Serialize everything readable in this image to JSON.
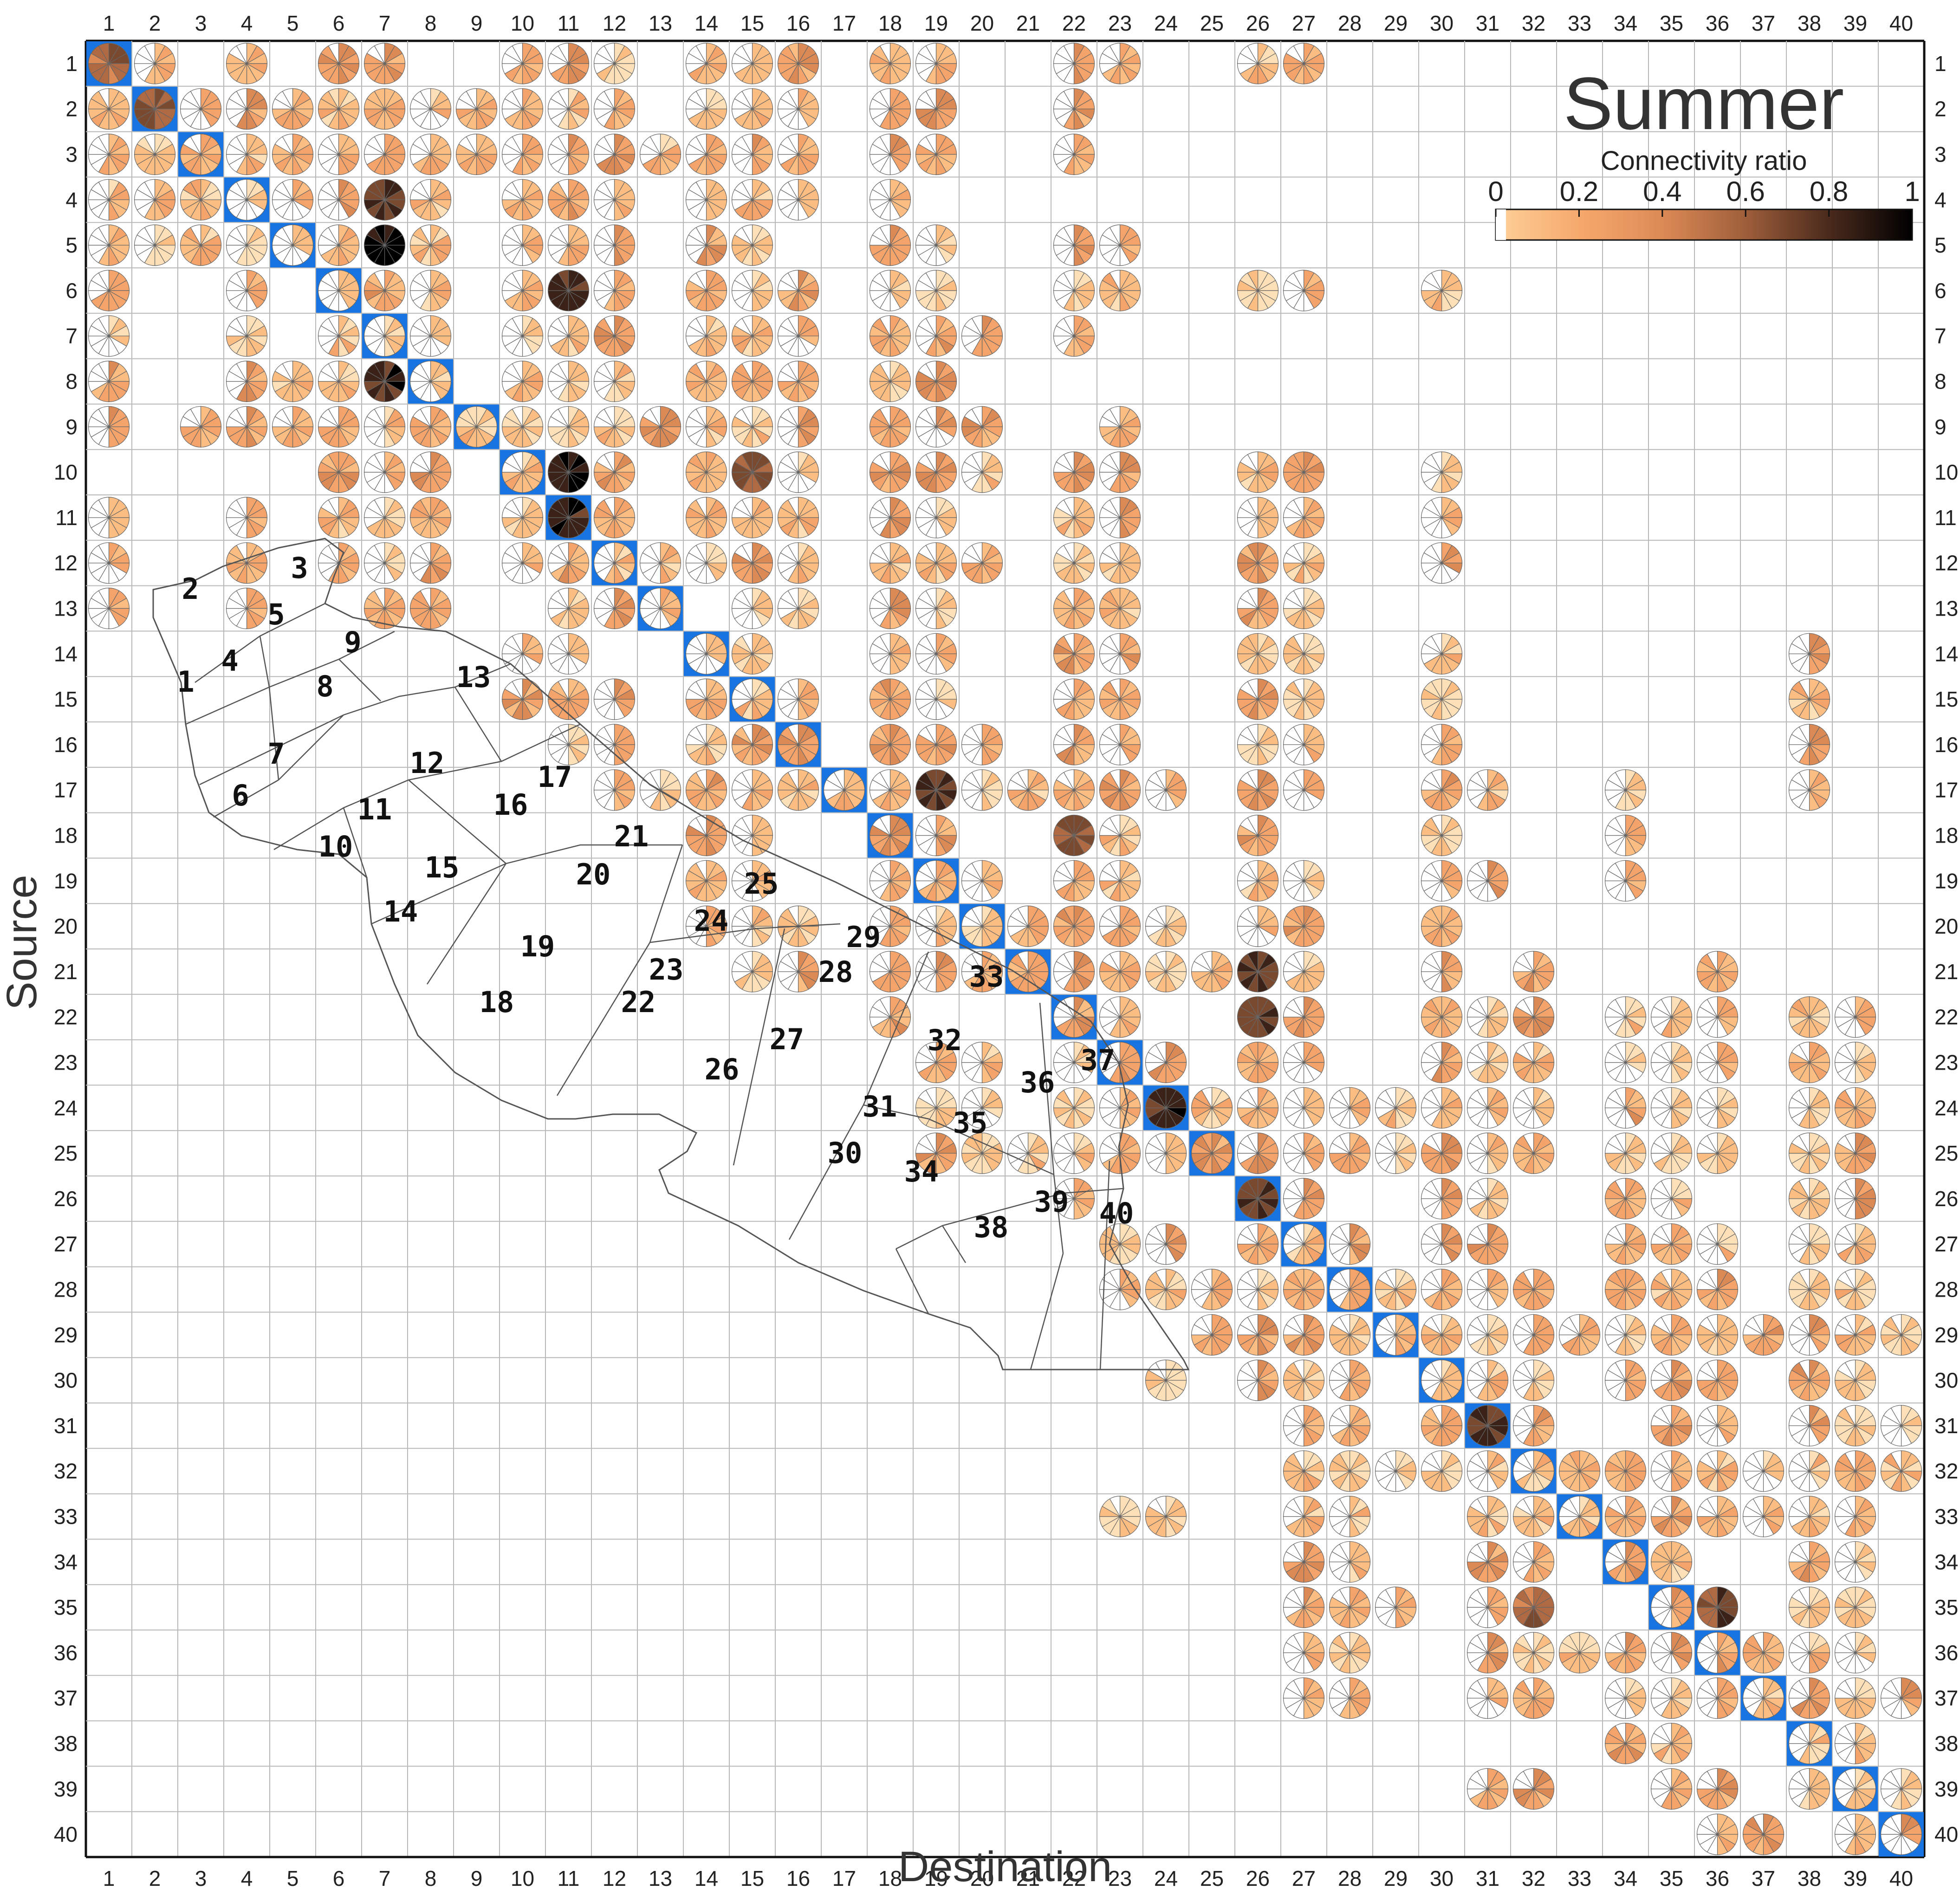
{
  "chart_data": {
    "type": "heatmap",
    "title": "Summer",
    "xlabel": "Destination",
    "ylabel": "Source",
    "legend_title": "Connectivity ratio",
    "colorbar": {
      "range": [
        0,
        1
      ],
      "ticks": [
        "0",
        "0.2",
        "0.4",
        "0.6",
        "0.8",
        "1"
      ],
      "colors": [
        "#ffffff",
        "#fdc98a",
        "#f4a46a",
        "#d38555",
        "#9a5a3a",
        "#5a3322",
        "#000000"
      ],
      "placement": "top-right"
    },
    "grid": true,
    "n_areas": 40,
    "x_categories": [
      "1",
      "2",
      "3",
      "4",
      "5",
      "6",
      "7",
      "8",
      "9",
      "10",
      "11",
      "12",
      "13",
      "14",
      "15",
      "16",
      "17",
      "18",
      "19",
      "20",
      "21",
      "22",
      "23",
      "24",
      "25",
      "26",
      "27",
      "28",
      "29",
      "30",
      "31",
      "32",
      "33",
      "34",
      "35",
      "36",
      "37",
      "38",
      "39",
      "40"
    ],
    "y_categories": [
      "1",
      "2",
      "3",
      "4",
      "5",
      "6",
      "7",
      "8",
      "9",
      "10",
      "11",
      "12",
      "13",
      "14",
      "15",
      "16",
      "17",
      "18",
      "19",
      "20",
      "21",
      "22",
      "23",
      "24",
      "25",
      "26",
      "27",
      "28",
      "29",
      "30",
      "31",
      "32",
      "33",
      "34",
      "35",
      "36",
      "37",
      "38",
      "39",
      "40"
    ],
    "self_recruitment_color": "#1874e0",
    "values_note": "",
    "connections": [
      {
        "source": 1,
        "dest": [
          1,
          2,
          4,
          6,
          7,
          10,
          11,
          12,
          14,
          15,
          16,
          18,
          19,
          22,
          23,
          26,
          27
        ]
      },
      {
        "source": 2,
        "dest": [
          1,
          2,
          3,
          4,
          5,
          6,
          7,
          8,
          9,
          10,
          11,
          12,
          14,
          15,
          16,
          18,
          19,
          22
        ]
      },
      {
        "source": 3,
        "dest": [
          1,
          2,
          3,
          4,
          5,
          6,
          7,
          8,
          9,
          10,
          11,
          12,
          13,
          14,
          15,
          16,
          18,
          19,
          22
        ]
      },
      {
        "source": 4,
        "dest": [
          1,
          2,
          3,
          4,
          5,
          6,
          7,
          8,
          10,
          11,
          12,
          14,
          15,
          16,
          18
        ]
      },
      {
        "source": 5,
        "dest": [
          1,
          2,
          3,
          4,
          5,
          6,
          7,
          8,
          10,
          11,
          12,
          14,
          15,
          18,
          19,
          22,
          23
        ]
      },
      {
        "source": 6,
        "dest": [
          1,
          4,
          6,
          7,
          8,
          10,
          11,
          12,
          14,
          15,
          16,
          18,
          19,
          22,
          23,
          26,
          27,
          30
        ]
      },
      {
        "source": 7,
        "dest": [
          1,
          4,
          6,
          7,
          8,
          10,
          11,
          12,
          14,
          15,
          16,
          18,
          19,
          20,
          22
        ]
      },
      {
        "source": 8,
        "dest": [
          1,
          4,
          5,
          6,
          7,
          8,
          10,
          11,
          12,
          14,
          15,
          16,
          18,
          19
        ]
      },
      {
        "source": 9,
        "dest": [
          1,
          3,
          4,
          5,
          6,
          7,
          8,
          9,
          10,
          11,
          12,
          13,
          14,
          15,
          16,
          18,
          19,
          20,
          23
        ]
      },
      {
        "source": 10,
        "dest": [
          6,
          7,
          8,
          10,
          11,
          12,
          14,
          15,
          16,
          18,
          19,
          20,
          22,
          23,
          26,
          27,
          30
        ]
      },
      {
        "source": 11,
        "dest": [
          1,
          4,
          6,
          7,
          8,
          10,
          11,
          12,
          14,
          15,
          16,
          18,
          19,
          22,
          23,
          26,
          27,
          30
        ]
      },
      {
        "source": 12,
        "dest": [
          1,
          4,
          6,
          7,
          8,
          10,
          11,
          12,
          13,
          14,
          15,
          16,
          18,
          19,
          20,
          22,
          23,
          26,
          27,
          30
        ]
      },
      {
        "source": 13,
        "dest": [
          1,
          4,
          7,
          8,
          11,
          12,
          13,
          15,
          16,
          18,
          19,
          22,
          23,
          26,
          27
        ]
      },
      {
        "source": 14,
        "dest": [
          10,
          11,
          14,
          15,
          18,
          19,
          22,
          23,
          26,
          27,
          30,
          38
        ]
      },
      {
        "source": 15,
        "dest": [
          10,
          11,
          12,
          14,
          15,
          16,
          18,
          19,
          22,
          23,
          26,
          27,
          30,
          38
        ]
      },
      {
        "source": 16,
        "dest": [
          11,
          12,
          14,
          15,
          16,
          18,
          19,
          20,
          22,
          23,
          26,
          27,
          30,
          38
        ]
      },
      {
        "source": 17,
        "dest": [
          12,
          13,
          14,
          15,
          16,
          17,
          18,
          19,
          20,
          21,
          22,
          23,
          24,
          26,
          27,
          30,
          31,
          34,
          38
        ]
      },
      {
        "source": 18,
        "dest": [
          14,
          15,
          18,
          19,
          22,
          23,
          26,
          30,
          34
        ]
      },
      {
        "source": 19,
        "dest": [
          14,
          15,
          18,
          19,
          20,
          22,
          23,
          26,
          27,
          30,
          31,
          34
        ]
      },
      {
        "source": 20,
        "dest": [
          14,
          15,
          16,
          18,
          19,
          20,
          21,
          22,
          23,
          24,
          26,
          27,
          30
        ]
      },
      {
        "source": 21,
        "dest": [
          15,
          16,
          18,
          19,
          20,
          21,
          22,
          23,
          24,
          25,
          26,
          27,
          30,
          32,
          36
        ]
      },
      {
        "source": 22,
        "dest": [
          18,
          22,
          23,
          26,
          27,
          30,
          31,
          32,
          34,
          35,
          36,
          38,
          39
        ]
      },
      {
        "source": 23,
        "dest": [
          19,
          20,
          22,
          23,
          24,
          26,
          27,
          30,
          31,
          32,
          34,
          35,
          36,
          38,
          39
        ]
      },
      {
        "source": 24,
        "dest": [
          19,
          20,
          22,
          23,
          24,
          25,
          26,
          27,
          28,
          29,
          30,
          31,
          32,
          34,
          35,
          36,
          38,
          39
        ]
      },
      {
        "source": 25,
        "dest": [
          19,
          20,
          21,
          22,
          23,
          24,
          25,
          26,
          27,
          28,
          29,
          30,
          31,
          32,
          34,
          35,
          36,
          38,
          39
        ]
      },
      {
        "source": 26,
        "dest": [
          22,
          26,
          27,
          30,
          31,
          34,
          35,
          38,
          39
        ]
      },
      {
        "source": 27,
        "dest": [
          23,
          24,
          26,
          27,
          28,
          30,
          31,
          34,
          35,
          36,
          38,
          39
        ]
      },
      {
        "source": 28,
        "dest": [
          23,
          24,
          25,
          26,
          27,
          28,
          29,
          30,
          31,
          32,
          34,
          35,
          36,
          38,
          39
        ]
      },
      {
        "source": 29,
        "dest": [
          25,
          26,
          27,
          28,
          29,
          30,
          31,
          32,
          33,
          34,
          35,
          36,
          37,
          38,
          39,
          40
        ]
      },
      {
        "source": 30,
        "dest": [
          24,
          26,
          27,
          28,
          30,
          31,
          32,
          34,
          35,
          36,
          38,
          39
        ]
      },
      {
        "source": 31,
        "dest": [
          27,
          28,
          30,
          31,
          32,
          35,
          36,
          38,
          39,
          40
        ]
      },
      {
        "source": 32,
        "dest": [
          27,
          28,
          29,
          30,
          31,
          32,
          33,
          34,
          35,
          36,
          37,
          38,
          39,
          40
        ]
      },
      {
        "source": 33,
        "dest": [
          23,
          24,
          27,
          28,
          31,
          32,
          33,
          34,
          35,
          36,
          37,
          38,
          39
        ]
      },
      {
        "source": 34,
        "dest": [
          27,
          28,
          31,
          32,
          34,
          35,
          38,
          39
        ]
      },
      {
        "source": 35,
        "dest": [
          27,
          28,
          29,
          31,
          32,
          35,
          36,
          38,
          39
        ]
      },
      {
        "source": 36,
        "dest": [
          27,
          28,
          31,
          32,
          33,
          34,
          35,
          36,
          37,
          38,
          39
        ]
      },
      {
        "source": 37,
        "dest": [
          27,
          28,
          31,
          32,
          34,
          35,
          36,
          37,
          38,
          39,
          40
        ]
      },
      {
        "source": 38,
        "dest": [
          34,
          35,
          38,
          39
        ]
      },
      {
        "source": 39,
        "dest": [
          31,
          32,
          35,
          36,
          38,
          39,
          40
        ]
      },
      {
        "source": 40,
        "dest": [
          36,
          37,
          39,
          40
        ]
      }
    ],
    "strong_links": [
      {
        "source": 1,
        "dest": 1,
        "value": 0.6
      },
      {
        "source": 2,
        "dest": 2,
        "value": 0.6
      },
      {
        "source": 4,
        "dest": 7,
        "value": 0.8
      },
      {
        "source": 5,
        "dest": 7,
        "value": 0.95
      },
      {
        "source": 6,
        "dest": 11,
        "value": 0.8
      },
      {
        "source": 8,
        "dest": 7,
        "value": 0.85
      },
      {
        "source": 10,
        "dest": 11,
        "value": 0.9
      },
      {
        "source": 11,
        "dest": 11,
        "value": 0.9
      },
      {
        "source": 10,
        "dest": 15,
        "value": 0.7
      },
      {
        "source": 17,
        "dest": 19,
        "value": 0.8
      },
      {
        "source": 18,
        "dest": 22,
        "value": 0.65
      },
      {
        "source": 22,
        "dest": 26,
        "value": 0.75
      },
      {
        "source": 26,
        "dest": 26,
        "value": 0.75
      },
      {
        "source": 21,
        "dest": 26,
        "value": 0.8
      },
      {
        "source": 35,
        "dest": 32,
        "value": 0.6
      },
      {
        "source": 35,
        "dest": 36,
        "value": 0.7
      },
      {
        "source": 24,
        "dest": 24,
        "value": 0.85
      },
      {
        "source": 31,
        "dest": 31,
        "value": 0.8
      }
    ]
  },
  "map_labels": [
    "1",
    "2",
    "3",
    "4",
    "5",
    "6",
    "7",
    "8",
    "9",
    "10",
    "11",
    "12",
    "13",
    "14",
    "15",
    "16",
    "17",
    "18",
    "19",
    "20",
    "21",
    "22",
    "23",
    "24",
    "25",
    "26",
    "27",
    "28",
    "29",
    "30",
    "31",
    "32",
    "33",
    "34",
    "35",
    "36",
    "37",
    "38",
    "39",
    "40"
  ]
}
